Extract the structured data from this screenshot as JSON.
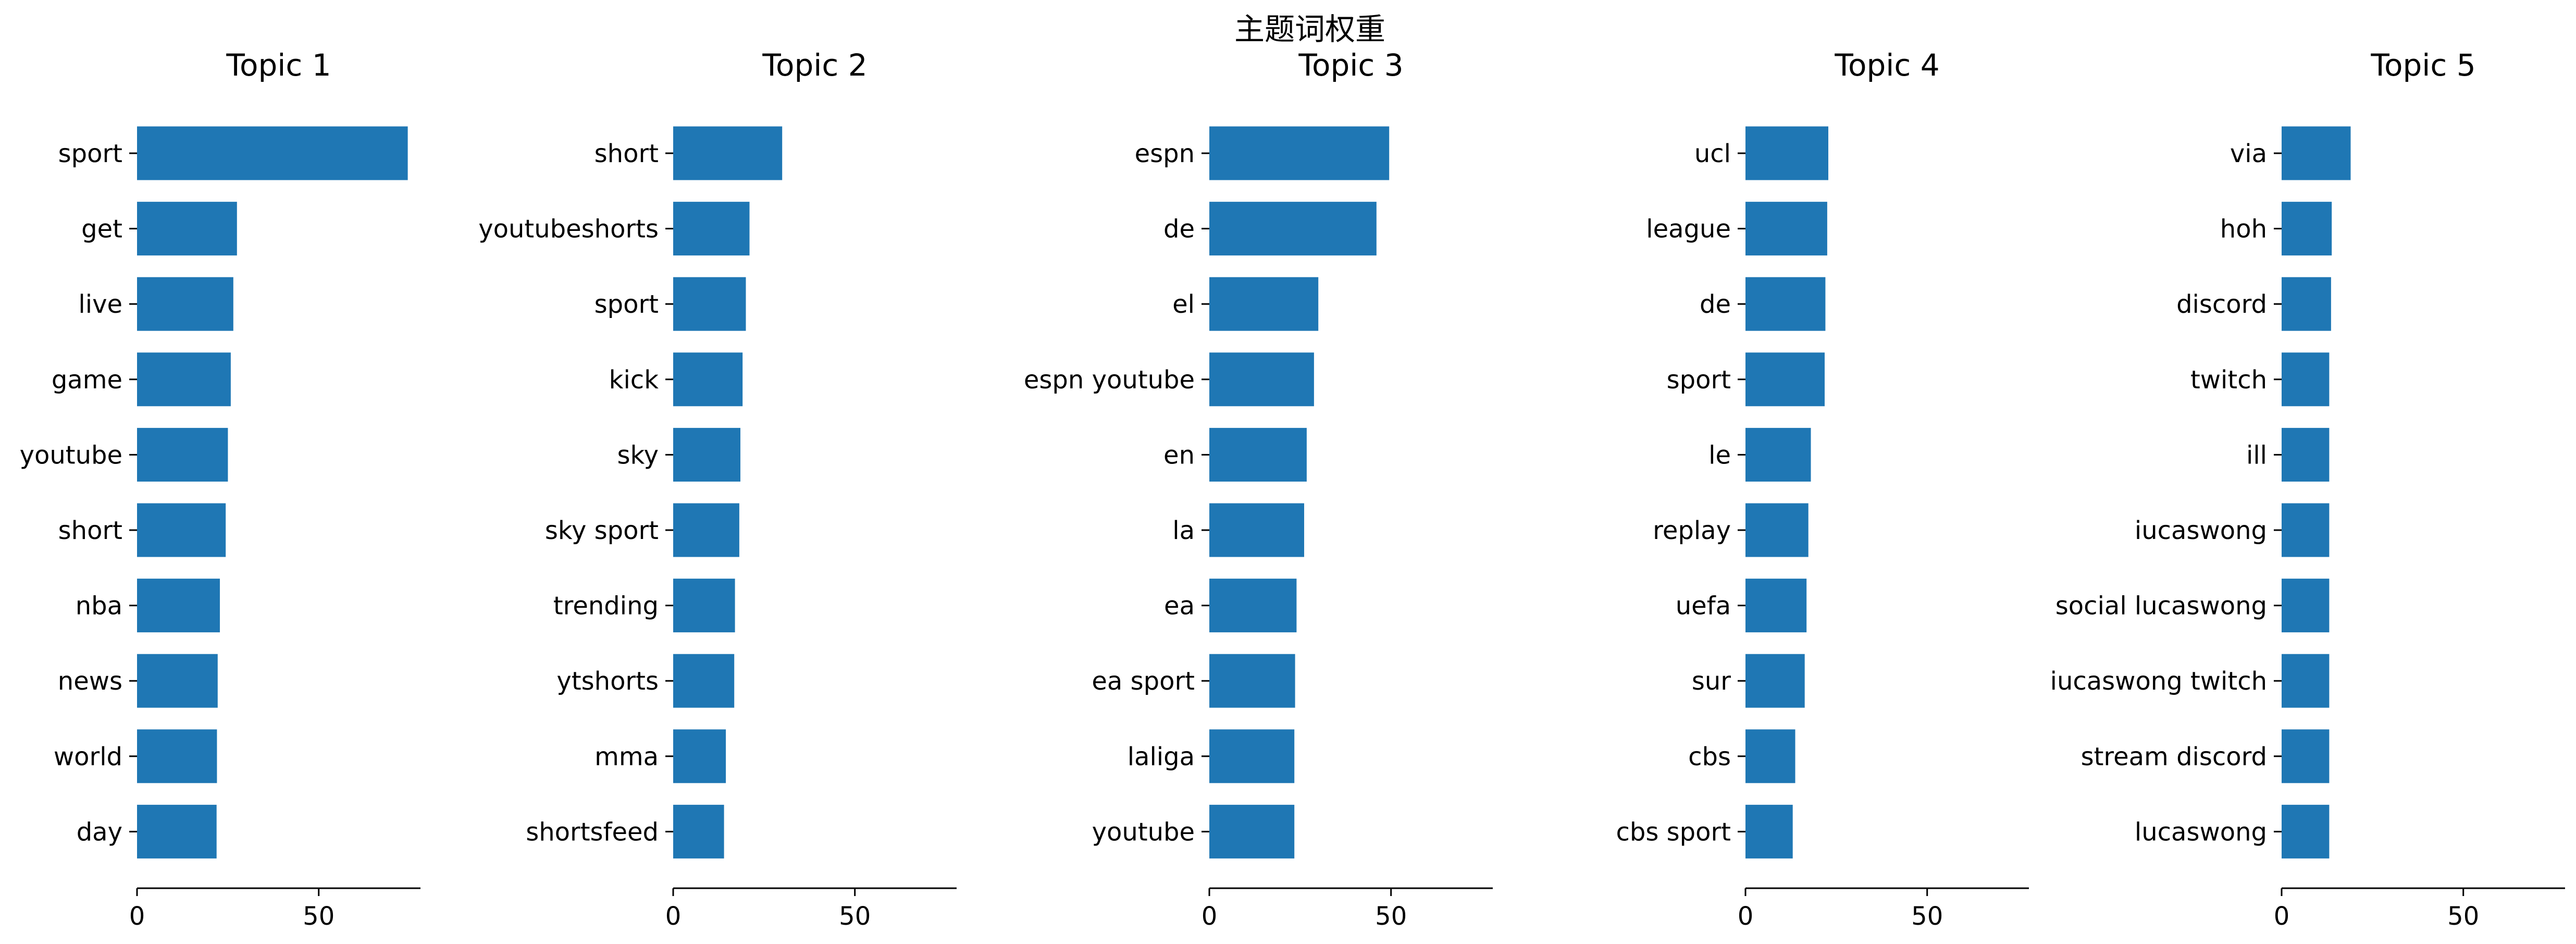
{
  "figure": {
    "title": "主题词权重"
  },
  "colors": {
    "bar": "#1f77b4",
    "axis": "#000000",
    "text": "#000000",
    "background": "#ffffff"
  },
  "chart_data": [
    {
      "type": "bar",
      "orientation": "horizontal",
      "title": "Topic 1",
      "categories": [
        "sport",
        "get",
        "live",
        "game",
        "youtube",
        "short",
        "nba",
        "news",
        "world",
        "day"
      ],
      "values": [
        74.5,
        27.5,
        26.5,
        25.8,
        25.0,
        24.4,
        22.8,
        22.2,
        22.0,
        21.9
      ],
      "xlim": [
        0,
        78
      ],
      "xticks": [
        0,
        50
      ],
      "ylabel": "",
      "xlabel": "",
      "grid": false
    },
    {
      "type": "bar",
      "orientation": "horizontal",
      "title": "Topic 2",
      "categories": [
        "short",
        "youtubeshorts",
        "sport",
        "kick",
        "sky",
        "sky sport",
        "trending",
        "ytshorts",
        "mma",
        "shortsfeed"
      ],
      "values": [
        30.0,
        21.0,
        20.0,
        19.1,
        18.5,
        18.2,
        17.0,
        16.8,
        14.5,
        14.0
      ],
      "xlim": [
        0,
        78
      ],
      "xticks": [
        0,
        50
      ],
      "ylabel": "",
      "xlabel": "",
      "grid": false
    },
    {
      "type": "bar",
      "orientation": "horizontal",
      "title": "Topic 3",
      "categories": [
        "espn",
        "de",
        "el",
        "espn youtube",
        "en",
        "la",
        "ea",
        "ea sport",
        "laliga",
        "youtube"
      ],
      "values": [
        49.5,
        46.0,
        30.0,
        28.8,
        26.8,
        26.1,
        24.0,
        23.6,
        23.4,
        23.4
      ],
      "xlim": [
        0,
        78
      ],
      "xticks": [
        0,
        50
      ],
      "ylabel": "",
      "xlabel": "",
      "grid": false
    },
    {
      "type": "bar",
      "orientation": "horizontal",
      "title": "Topic 4",
      "categories": [
        "ucl",
        "league",
        "de",
        "sport",
        "le",
        "replay",
        "uefa",
        "sur",
        "cbs",
        "cbs sport"
      ],
      "values": [
        22.8,
        22.5,
        22.0,
        21.8,
        18.0,
        17.3,
        16.8,
        16.3,
        13.7,
        13.0
      ],
      "xlim": [
        0,
        78
      ],
      "xticks": [
        0,
        50
      ],
      "ylabel": "",
      "xlabel": "",
      "grid": false
    },
    {
      "type": "bar",
      "orientation": "horizontal",
      "title": "Topic 5",
      "categories": [
        "via",
        "hoh",
        "discord",
        "twitch",
        "ill",
        "iucaswong",
        "social lucaswong",
        "iucaswong twitch",
        "stream discord",
        "lucaswong"
      ],
      "values": [
        19.0,
        13.8,
        13.6,
        13.1,
        13.1,
        13.1,
        13.1,
        13.1,
        13.1,
        13.1
      ],
      "xlim": [
        0,
        78
      ],
      "xticks": [
        0,
        50
      ],
      "ylabel": "",
      "xlabel": "",
      "grid": false
    }
  ]
}
